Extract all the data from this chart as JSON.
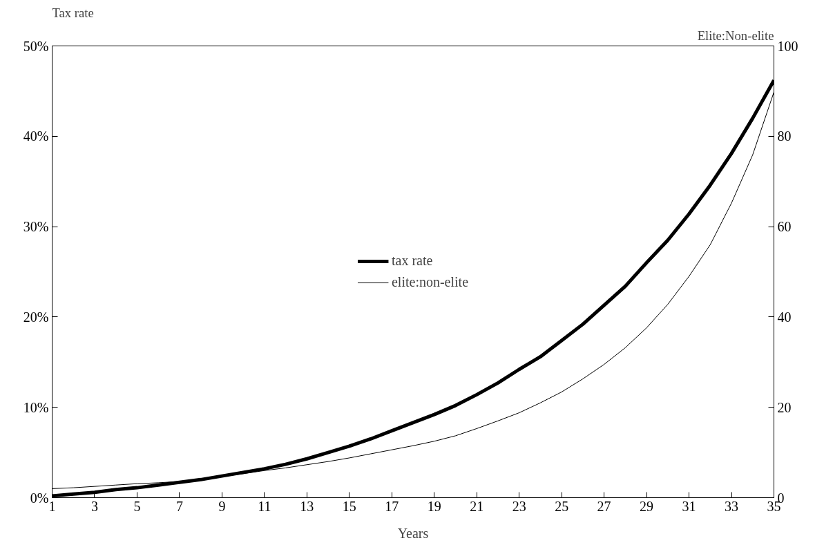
{
  "chart_data": {
    "type": "line",
    "xlabel": "Years",
    "ylabel": "Tax rate",
    "y2label": "Elite:Non-elite",
    "x": [
      1,
      2,
      3,
      4,
      5,
      6,
      7,
      8,
      9,
      10,
      11,
      12,
      13,
      14,
      15,
      16,
      17,
      18,
      19,
      20,
      21,
      22,
      23,
      24,
      25,
      26,
      27,
      28,
      29,
      30,
      31,
      32,
      33,
      34,
      35
    ],
    "series": [
      {
        "name": "tax rate",
        "color": "#000000",
        "values": [
          0.2,
          0.4,
          0.6,
          0.9,
          1.1,
          1.4,
          1.7,
          2.0,
          2.4,
          2.8,
          3.2,
          3.7,
          4.3,
          5.0,
          5.7,
          6.5,
          7.4,
          8.3,
          9.2,
          10.2,
          11.4,
          12.7,
          14.2,
          15.6,
          17.4,
          19.2,
          21.3,
          23.4,
          26.0,
          28.5,
          31.4,
          34.6,
          38.1,
          42.0,
          46.2
        ]
      },
      {
        "name": "elite:non-elite",
        "color": "#000000",
        "axis": "y2",
        "values": [
          2.0,
          2.2,
          2.5,
          2.8,
          3.1,
          3.3,
          3.6,
          4.1,
          4.7,
          5.3,
          6.0,
          6.6,
          7.3,
          8.0,
          8.8,
          9.7,
          10.6,
          11.5,
          12.5,
          13.7,
          15.3,
          17.0,
          18.8,
          21.0,
          23.4,
          26.3,
          29.5,
          33.2,
          37.6,
          42.8,
          49.0,
          56.0,
          65.2,
          75.9,
          89.8
        ]
      }
    ],
    "xlim": [
      1,
      35
    ],
    "xticks": [
      1,
      3,
      5,
      7,
      9,
      11,
      13,
      15,
      17,
      19,
      21,
      23,
      25,
      27,
      29,
      31,
      33,
      35
    ],
    "ylim": [
      0,
      50
    ],
    "yticks": [
      {
        "value": 0,
        "label": "0%"
      },
      {
        "value": 10,
        "label": "10%"
      },
      {
        "value": 20,
        "label": "20%"
      },
      {
        "value": 30,
        "label": "30%"
      },
      {
        "value": 40,
        "label": "40%"
      },
      {
        "value": 50,
        "label": "50%"
      }
    ],
    "y2lim": [
      0,
      100
    ],
    "y2ticks": [
      0,
      20,
      40,
      60,
      80,
      100
    ],
    "legend": "center",
    "grid": false,
    "marker": "none",
    "line_style": "solid"
  }
}
